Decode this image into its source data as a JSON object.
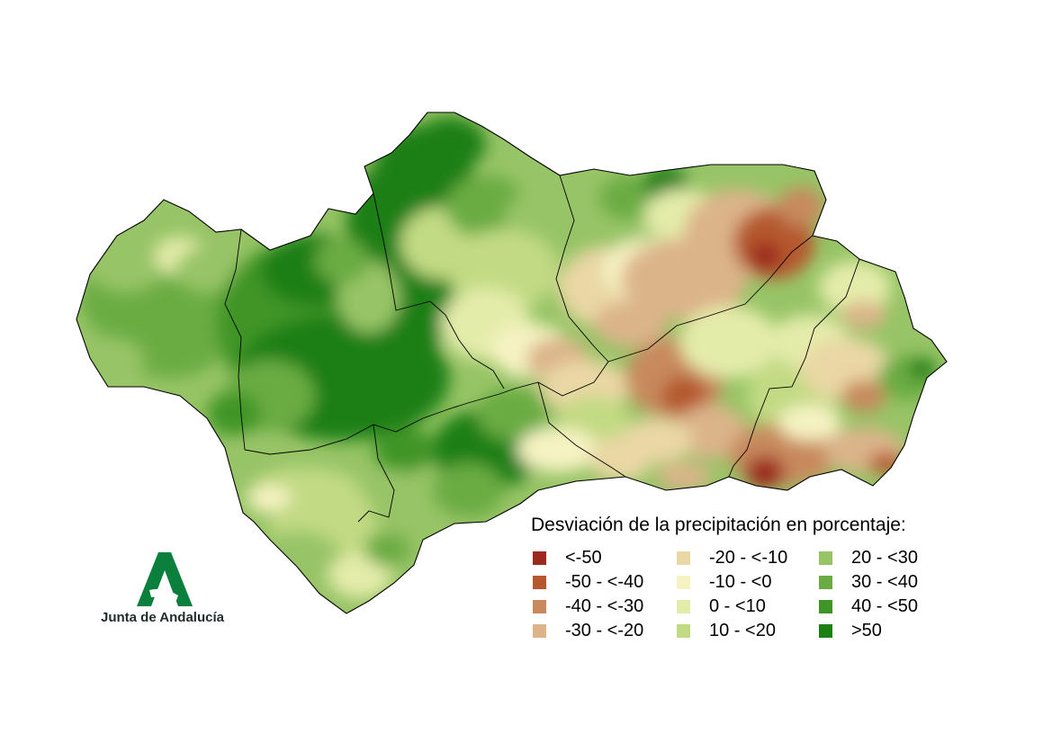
{
  "map": {
    "region": "Andalucía",
    "colors": {
      "lt_-50": "#9c2a1e",
      "-50_-40": "#b5582f",
      "-40_-30": "#c8895d",
      "-30_-20": "#dcb48a",
      "-20_-10": "#ead7a5",
      "-10_0": "#f6f3c3",
      "0_10": "#e4ecaa",
      "10_20": "#c2da83",
      "20_30": "#97c466",
      "30_40": "#6aac43",
      "40_50": "#3f9526",
      "gt_50": "#1c7f12"
    }
  },
  "legend": {
    "title": "Desviación de la precipitación en porcentaje:",
    "items": [
      {
        "label": "<-50",
        "color": "#9c2a1e"
      },
      {
        "label": "-50 - <-40",
        "color": "#b5582f"
      },
      {
        "label": "-40 - <-30",
        "color": "#c8895d"
      },
      {
        "label": "-30 - <-20",
        "color": "#dcb48a"
      },
      {
        "label": "-20 - <-10",
        "color": "#ead7a5"
      },
      {
        "label": "-10 - <0",
        "color": "#f6f3c3"
      },
      {
        "label": "0 - <10",
        "color": "#e4ecaa"
      },
      {
        "label": "10 - <20",
        "color": "#c2da83"
      },
      {
        "label": "20 - <30",
        "color": "#97c466"
      },
      {
        "label": "30 - <40",
        "color": "#6aac43"
      },
      {
        "label": "40 - <50",
        "color": "#3f9526"
      },
      {
        "label": ">50",
        "color": "#1c7f12"
      }
    ]
  },
  "logo": {
    "text": "Junta de Andalucía",
    "color": "#0b7f3c"
  }
}
